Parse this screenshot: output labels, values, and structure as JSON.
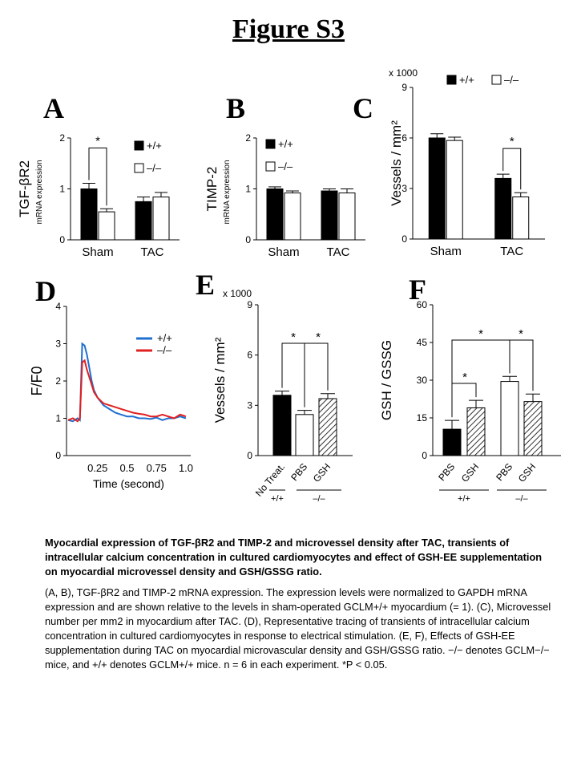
{
  "figure_title": "Figure S3",
  "panels": {
    "A": "A",
    "B": "B",
    "C": "C",
    "D": "D",
    "E": "E",
    "F": "F"
  },
  "legend": {
    "wt": "+/+",
    "ko": "–/–"
  },
  "sig": "*",
  "chart_data": [
    {
      "panel": "A",
      "type": "bar",
      "ylabel": "TGF-βR2",
      "ylabel_sub": "mRNA expression",
      "ylim": [
        0,
        2
      ],
      "yticks": [
        "0",
        "1",
        "2"
      ],
      "groups": [
        "Sham",
        "TAC"
      ],
      "series": [
        {
          "name": "+/+",
          "values": [
            1.0,
            0.75
          ],
          "errors": [
            0.11,
            0.09
          ],
          "fill": "#000000"
        },
        {
          "name": "–/–",
          "values": [
            0.55,
            0.84
          ],
          "errors": [
            0.06,
            0.09
          ],
          "fill": "#ffffff"
        }
      ]
    },
    {
      "panel": "B",
      "type": "bar",
      "ylabel": "TIMP-2",
      "ylabel_sub": "mRNA expression",
      "ylim": [
        0,
        2
      ],
      "yticks": [
        "0",
        "1",
        "2"
      ],
      "groups": [
        "Sham",
        "TAC"
      ],
      "series": [
        {
          "name": "+/+",
          "values": [
            1.0,
            0.96
          ],
          "errors": [
            0.04,
            0.04
          ],
          "fill": "#000000"
        },
        {
          "name": "–/–",
          "values": [
            0.92,
            0.92
          ],
          "errors": [
            0.04,
            0.08
          ],
          "fill": "#ffffff"
        }
      ]
    },
    {
      "panel": "C",
      "type": "bar",
      "ylabel": "Vessels / mm²",
      "scale_note": "x 1000",
      "ylim": [
        0,
        9
      ],
      "yticks": [
        "0",
        "3",
        "6",
        "9"
      ],
      "groups": [
        "Sham",
        "TAC"
      ],
      "series": [
        {
          "name": "+/+",
          "values": [
            6.0,
            3.6
          ],
          "errors": [
            0.25,
            0.25
          ],
          "fill": "#000000"
        },
        {
          "name": "–/–",
          "values": [
            5.85,
            2.5
          ],
          "errors": [
            0.2,
            0.25
          ],
          "fill": "#ffffff"
        }
      ]
    },
    {
      "panel": "D",
      "type": "line",
      "ylabel": "F/F0",
      "xlabel": "Time (second)",
      "ylim": [
        0,
        4
      ],
      "yticks": [
        "0",
        "1",
        "2",
        "3",
        "4"
      ],
      "xlim": [
        0,
        1.0
      ],
      "xticks": [
        "0.25",
        "0.5",
        "0.75",
        "1.0"
      ],
      "series": [
        {
          "name": "+/+",
          "color": "#1f6fd1",
          "x": [
            0.0,
            0.04,
            0.08,
            0.1,
            0.12,
            0.14,
            0.16,
            0.18,
            0.2,
            0.22,
            0.25,
            0.3,
            0.35,
            0.4,
            0.45,
            0.5,
            0.55,
            0.6,
            0.65,
            0.7,
            0.75,
            0.8,
            0.85,
            0.9,
            0.95,
            1.0
          ],
          "y": [
            0.95,
            0.92,
            1.0,
            0.95,
            3.0,
            2.95,
            2.7,
            2.35,
            2.0,
            1.75,
            1.55,
            1.35,
            1.25,
            1.15,
            1.1,
            1.05,
            1.05,
            1.0,
            1.0,
            0.98,
            1.02,
            0.95,
            1.0,
            1.0,
            1.05,
            1.0
          ]
        },
        {
          "name": "–/–",
          "color": "#e02020",
          "x": [
            0.0,
            0.04,
            0.08,
            0.1,
            0.12,
            0.14,
            0.16,
            0.18,
            0.2,
            0.22,
            0.25,
            0.3,
            0.35,
            0.4,
            0.45,
            0.5,
            0.55,
            0.6,
            0.65,
            0.7,
            0.75,
            0.8,
            0.85,
            0.9,
            0.95,
            1.0
          ],
          "y": [
            0.95,
            1.0,
            0.92,
            1.0,
            2.5,
            2.55,
            2.3,
            2.1,
            1.9,
            1.7,
            1.55,
            1.4,
            1.35,
            1.3,
            1.25,
            1.2,
            1.15,
            1.12,
            1.1,
            1.05,
            1.05,
            1.1,
            1.05,
            1.0,
            1.1,
            1.05
          ]
        }
      ]
    },
    {
      "panel": "E",
      "type": "bar",
      "ylabel": "Vessels / mm²",
      "scale_note": "x 1000",
      "ylim": [
        0,
        9
      ],
      "yticks": [
        "0",
        "3",
        "6",
        "9"
      ],
      "categories": [
        "No Treat.",
        "PBS",
        "GSH"
      ],
      "values": [
        3.6,
        2.45,
        3.4
      ],
      "errors": [
        0.25,
        0.25,
        0.3
      ],
      "fills": [
        "solid",
        "open",
        "hatched"
      ],
      "genotype_groups": [
        "+/+",
        "–/–"
      ]
    },
    {
      "panel": "F",
      "type": "bar",
      "ylabel": "GSH / GSSG",
      "ylim": [
        0,
        60
      ],
      "yticks": [
        "0",
        "15",
        "30",
        "45",
        "60"
      ],
      "categories": [
        "PBS",
        "GSH",
        "PBS",
        "GSH"
      ],
      "values": [
        10.5,
        19.0,
        29.5,
        21.5
      ],
      "errors": [
        3.5,
        3.0,
        2.0,
        3.0
      ],
      "fills": [
        "solid",
        "hatched",
        "open",
        "hatched"
      ],
      "genotype_groups": [
        "+/+",
        "–/–"
      ]
    }
  ],
  "caption": {
    "title": "Myocardial expression of TGF-βR2 and TIMP-2 and microvessel density after TAC, transients of intracellular calcium concentration in cultured cardiomyocytes and effect of GSH-EE supplementation on myocardial microvessel density and GSH/GSSG ratio.",
    "body": "(A, B), TGF-βR2 and TIMP-2 mRNA expression. The expression levels were normalized to GAPDH mRNA expression and are shown relative to the levels in sham-operated GCLM+/+ myocardium (= 1). (C), Microvessel number per mm2 in myocardium after TAC. (D), Representative tracing of transients of intracellular calcium concentration in cultured cardiomyocytes in response to electrical stimulation. (E, F), Effects of GSH-EE supplementation during TAC on myocardial microvascular density and GSH/GSSG ratio. −/− denotes GCLM−/− mice, and +/+ denotes GCLM+/+ mice. n = 6 in each experiment. *P < 0.05."
  }
}
